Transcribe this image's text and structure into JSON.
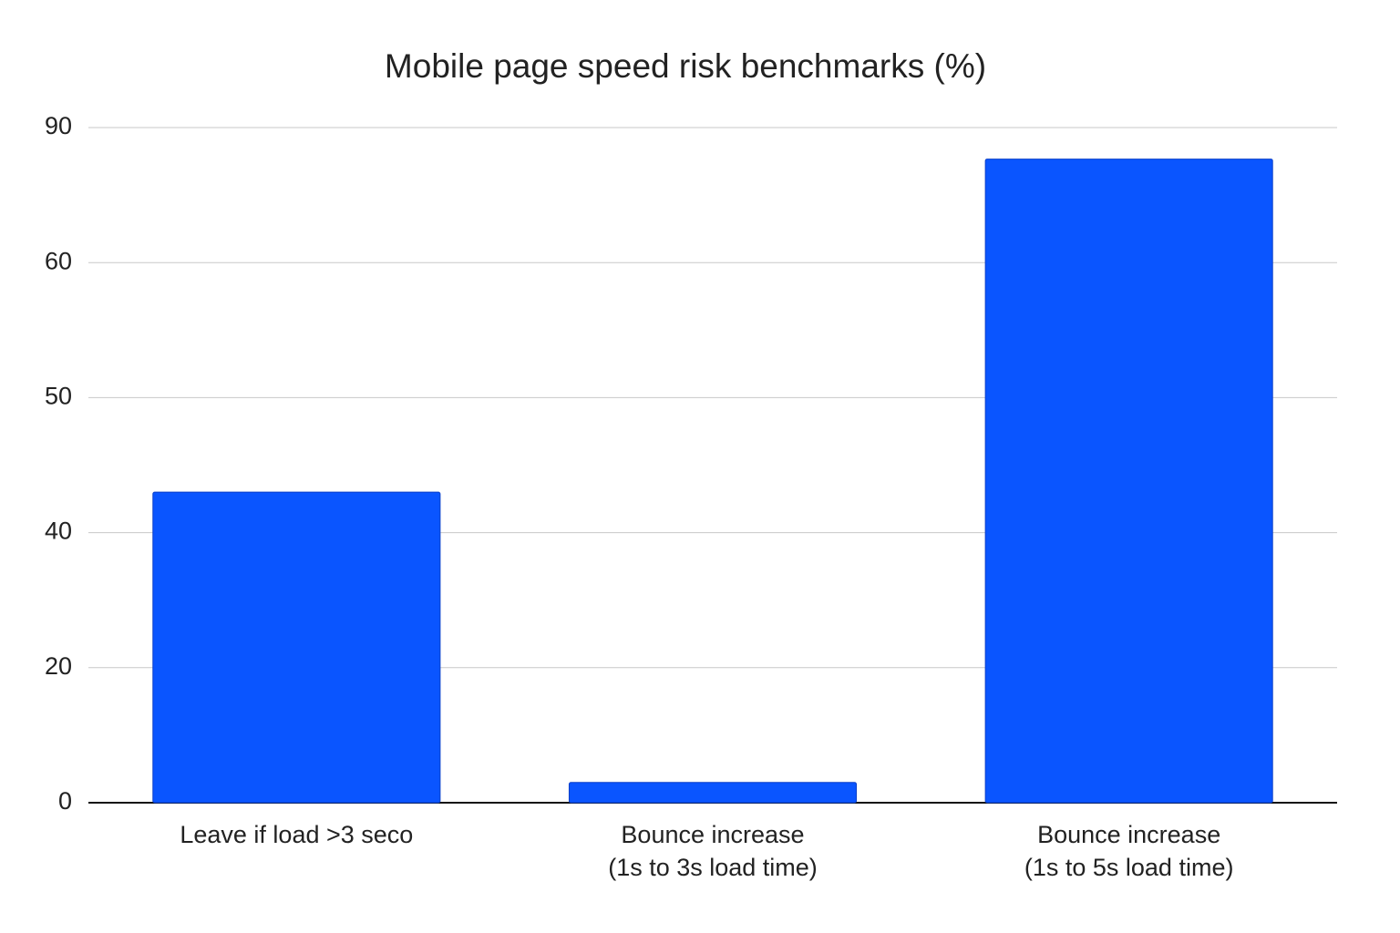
{
  "chart_data": {
    "type": "bar",
    "title": "Mobile page speed risk benchmarks (%)",
    "categories": [
      "Leave if load >3 seco",
      "Bounce increase\n(1s to 3s load time)",
      "Bounce increase\n(1s to 5s load time)"
    ],
    "values": [
      43,
      3,
      83
    ],
    "color": "#0a55ff",
    "ylim": [
      0,
      90
    ],
    "yticks": [
      0,
      20,
      40,
      50,
      60,
      90
    ],
    "grid": true
  }
}
